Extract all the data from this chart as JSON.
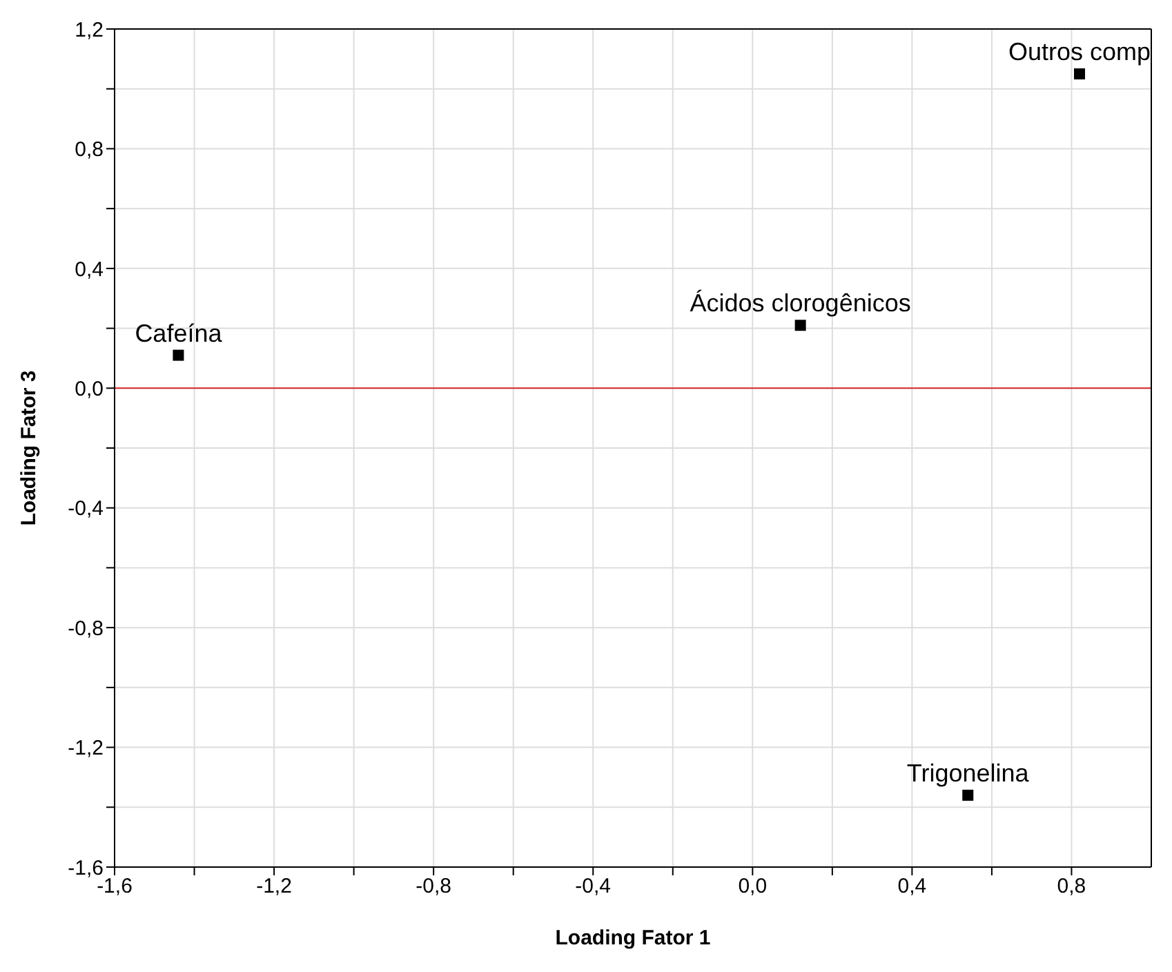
{
  "chart_data": {
    "type": "scatter",
    "xlabel": "Loading Fator 1",
    "ylabel": "Loading Fator 3",
    "x": [
      -1.44,
      0.12,
      0.82,
      0.54
    ],
    "series": [
      {
        "color": "#000000",
        "values": [
          0.11,
          0.21,
          1.05,
          -1.36
        ]
      }
    ],
    "marker": "square",
    "grid": true,
    "xlim": [
      -1.6,
      1.0
    ],
    "xticks": [
      {
        "value": -1.6,
        "label": "-1,6"
      },
      {
        "value": -1.4,
        "label": null
      },
      {
        "value": -1.2,
        "label": "-1,2"
      },
      {
        "value": -1.0,
        "label": null
      },
      {
        "value": -0.8,
        "label": "-0,8"
      },
      {
        "value": -0.6,
        "label": null
      },
      {
        "value": -0.4,
        "label": "-0,4"
      },
      {
        "value": -0.2,
        "label": null
      },
      {
        "value": 0,
        "label": "0,0"
      },
      {
        "value": 0.2,
        "label": null
      },
      {
        "value": 0.4,
        "label": "0,4"
      },
      {
        "value": 0.6,
        "label": null
      },
      {
        "value": 0.8,
        "label": "0,8"
      }
    ],
    "ylim": [
      -1.6,
      1.2
    ],
    "yticks": [
      {
        "value": -1.6,
        "label": "-1,6"
      },
      {
        "value": -1.4,
        "label": null
      },
      {
        "value": -1.2,
        "label": "-1,2"
      },
      {
        "value": -1.0,
        "label": null
      },
      {
        "value": -0.8,
        "label": "-0,8"
      },
      {
        "value": -0.6,
        "label": null
      },
      {
        "value": -0.4,
        "label": "-0,4"
      },
      {
        "value": -0.2,
        "label": null
      },
      {
        "value": 0,
        "label": "0,0"
      },
      {
        "value": 0.2,
        "label": null
      },
      {
        "value": 0.4,
        "label": "0,4"
      },
      {
        "value": 0.6,
        "label": null
      },
      {
        "value": 0.8,
        "label": "0,8"
      },
      {
        "value": 1.0,
        "label": null
      },
      {
        "value": 1.2,
        "label": "1,2"
      }
    ],
    "ref_lines": [
      {
        "axis": "y",
        "value": 0,
        "color": "#d62728"
      }
    ],
    "annotations": [
      {
        "text": "Cafeína",
        "x": -1.44,
        "y": 0.11
      },
      {
        "text": "Ácidos clorogênicos",
        "x": 0.12,
        "y": 0.21
      },
      {
        "text": "Outros comp",
        "x": 0.82,
        "y": 1.05
      },
      {
        "text": "Trigonelina",
        "x": 0.54,
        "y": -1.36
      }
    ]
  }
}
